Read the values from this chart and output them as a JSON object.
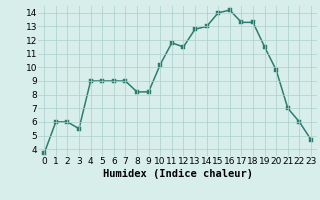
{
  "x": [
    0,
    1,
    2,
    3,
    4,
    5,
    6,
    7,
    8,
    9,
    10,
    11,
    12,
    13,
    14,
    15,
    16,
    17,
    18,
    19,
    20,
    21,
    22,
    23
  ],
  "y": [
    3.7,
    6.0,
    6.0,
    5.5,
    9.0,
    9.0,
    9.0,
    9.0,
    8.2,
    8.2,
    10.2,
    11.8,
    11.5,
    12.8,
    13.0,
    14.0,
    14.2,
    13.3,
    13.3,
    11.5,
    9.8,
    7.0,
    6.0,
    4.7
  ],
  "xlabel": "Humidex (Indice chaleur)",
  "xlim": [
    -0.5,
    23.5
  ],
  "ylim": [
    3.5,
    14.5
  ],
  "yticks": [
    4,
    5,
    6,
    7,
    8,
    9,
    10,
    11,
    12,
    13,
    14
  ],
  "xticks": [
    0,
    1,
    2,
    3,
    4,
    5,
    6,
    7,
    8,
    9,
    10,
    11,
    12,
    13,
    14,
    15,
    16,
    17,
    18,
    19,
    20,
    21,
    22,
    23
  ],
  "line_color": "#2d7d6f",
  "bg_color": "#d8eeeb",
  "grid_color": "#aacfcb",
  "xlabel_fontsize": 7.5,
  "tick_fontsize": 6.5,
  "marker_size": 2.2,
  "line_width": 1.1
}
